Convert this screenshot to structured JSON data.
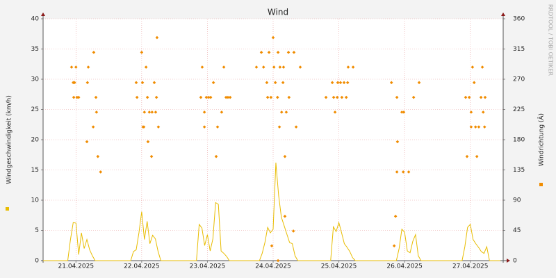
{
  "chart_data": {
    "type": "line",
    "title": "Wind",
    "ylabel": "Windgeschwindigkeit (km/h)",
    "y2label": "Windrichtung (Â)",
    "watermark": "RRDTOOL / TOBI OETIKER",
    "xlim": [
      0,
      168
    ],
    "xticks": [
      {
        "value": 12,
        "label": "21.04.2025"
      },
      {
        "value": 36,
        "label": "22.04.2025"
      },
      {
        "value": 60,
        "label": "23.04.2025"
      },
      {
        "value": 84,
        "label": "24.04.2025"
      },
      {
        "value": 108,
        "label": "25.04.2025"
      },
      {
        "value": 132,
        "label": "26.04.2025"
      },
      {
        "value": 156,
        "label": "27.04.2025"
      }
    ],
    "ylim": [
      0,
      40
    ],
    "yticks": [
      0,
      5,
      10,
      15,
      20,
      25,
      30,
      35,
      40
    ],
    "y2lim": [
      0,
      360
    ],
    "y2ticks": [
      0,
      45,
      90,
      135,
      180,
      225,
      270,
      315,
      360
    ],
    "grid": true,
    "series": [
      {
        "type": "line",
        "color": "#e8bc00",
        "x": [
          0,
          1,
          2,
          3,
          4,
          5,
          6,
          7,
          8,
          9,
          10,
          11,
          12,
          13,
          14,
          15,
          16,
          17,
          18,
          19,
          20,
          21,
          22,
          23,
          24,
          25,
          26,
          27,
          28,
          29,
          30,
          31,
          32,
          33,
          34,
          35,
          36,
          37,
          38,
          39,
          40,
          41,
          42,
          43,
          44,
          45,
          46,
          47,
          48,
          49,
          50,
          51,
          52,
          53,
          54,
          55,
          56,
          57,
          58,
          59,
          60,
          61,
          62,
          63,
          64,
          65,
          66,
          67,
          68,
          69,
          70,
          71,
          72,
          73,
          74,
          75,
          76,
          77,
          78,
          79,
          80,
          81,
          82,
          83,
          84,
          85,
          86,
          87,
          88,
          89,
          90,
          91,
          92,
          93,
          94,
          95,
          96,
          97,
          98,
          99,
          100,
          101,
          102,
          103,
          104,
          105,
          106,
          107,
          108,
          109,
          110,
          111,
          112,
          113,
          114,
          115,
          116,
          117,
          118,
          119,
          120,
          121,
          122,
          123,
          124,
          125,
          126,
          127,
          128,
          129,
          130,
          131,
          132,
          133,
          134,
          135,
          136,
          137,
          138,
          139,
          140,
          141,
          142,
          143,
          144,
          145,
          146,
          147,
          148,
          149,
          150,
          151,
          152,
          153,
          154,
          155,
          156,
          157,
          158,
          159,
          160,
          161,
          162,
          163,
          164,
          165,
          166,
          167
        ],
        "values": [
          0,
          0,
          0,
          0,
          0,
          0,
          0,
          0,
          0,
          0,
          3.5,
          6.3,
          6.2,
          1,
          4.6,
          2,
          3.5,
          1.8,
          0.8,
          0,
          0,
          0,
          0,
          0,
          0,
          0,
          0,
          0,
          0,
          0,
          0,
          0,
          0,
          1.5,
          1.8,
          4.6,
          8.1,
          3.5,
          6.5,
          2.8,
          4.2,
          3.6,
          1.5,
          0,
          0,
          0,
          0,
          0,
          0,
          0,
          0,
          0,
          0,
          0,
          0,
          0,
          0,
          6,
          5.4,
          2.5,
          4.3,
          1.6,
          3.6,
          9.6,
          9.3,
          1.6,
          1.2,
          0.7,
          0,
          0,
          0,
          0,
          0,
          0,
          0,
          0,
          0,
          0,
          0,
          0,
          1.2,
          3,
          5.5,
          4.6,
          5.2,
          16.2,
          10.8,
          7.2,
          5.8,
          4.4,
          3,
          2.8,
          0.8,
          0,
          0,
          0,
          0,
          0,
          0,
          0,
          0,
          0,
          0,
          0,
          0,
          0,
          5.6,
          4.8,
          6.3,
          4.6,
          2.8,
          2.2,
          1.5,
          0.5,
          0,
          0,
          0,
          0,
          0,
          0,
          0,
          0,
          0,
          0,
          0,
          0,
          0,
          0,
          0,
          0,
          2,
          5.2,
          4.7,
          1.6,
          1.3,
          3.2,
          4.3,
          0.8,
          0,
          0,
          0,
          0,
          0,
          0,
          0,
          0,
          0,
          0,
          0,
          0,
          0,
          0,
          0,
          0,
          2.3,
          5.5,
          6,
          3.5,
          2.8,
          2.2,
          1.5,
          1.2,
          2.3,
          0,
          0,
          0,
          0,
          0
        ]
      },
      {
        "type": "scatter",
        "axis": "y2",
        "color": "#f08c00",
        "x": [
          10.4,
          11,
          11.5,
          12,
          12.4,
          13,
          16,
          16.2,
          16.5,
          18.3,
          18.5,
          19.3,
          19.5,
          20,
          21,
          11.2,
          34,
          34.3,
          36,
          36.3,
          36.5,
          36.8,
          37,
          37.6,
          38.1,
          38.3,
          38.8,
          39.6,
          39.8,
          40.6,
          41.1,
          41.4,
          41.6,
          42.1,
          57.6,
          58.1,
          58.9,
          58.9,
          59.6,
          60.5,
          61.2,
          62.2,
          63.2,
          63.7,
          65.2,
          66,
          66.8,
          67.5,
          68.3,
          77.9,
          79.7,
          80.5,
          81.7,
          82,
          82.5,
          83.2,
          83.5,
          84,
          84.3,
          84.8,
          85.6,
          85.8,
          85.8,
          86.3,
          86.5,
          87.1,
          87.6,
          87.8,
          88.3,
          88.3,
          88.8,
          89.6,
          89.8,
          91.4,
          91.6,
          92.4,
          93.9,
          103.3,
          105.6,
          106.1,
          106.6,
          107.4,
          107.6,
          108.6,
          109.1,
          109.9,
          110.7,
          111.2,
          111.4,
          113.2,
          127.2,
          128.2,
          128.7,
          129.2,
          129.2,
          129.4,
          131,
          131.5,
          131.7,
          133.5,
          135.3,
          137.3,
          154.3,
          154.8,
          155.6,
          156.3,
          156.3,
          156.8,
          157.4,
          157.9,
          158.4,
          159.1,
          159.9,
          160.4,
          160.7,
          161.2,
          161.4
        ],
        "values": [
          288,
          265,
          265,
          288,
          243,
          243,
          177,
          265,
          288,
          199,
          310,
          243,
          221,
          155,
          132,
          243,
          265,
          243,
          310,
          265,
          199,
          199,
          221,
          288,
          243,
          177,
          221,
          155,
          221,
          265,
          221,
          243,
          332,
          199,
          243,
          288,
          221,
          199,
          243,
          243,
          243,
          265,
          155,
          199,
          221,
          288,
          243,
          243,
          243,
          288,
          310,
          288,
          265,
          243,
          310,
          243,
          22,
          332,
          288,
          265,
          243,
          310,
          0,
          199,
          288,
          221,
          265,
          288,
          155,
          66,
          221,
          310,
          243,
          44,
          310,
          199,
          288,
          243,
          265,
          243,
          221,
          243,
          265,
          265,
          243,
          265,
          243,
          265,
          288,
          288,
          265,
          22,
          66,
          243,
          132,
          177,
          221,
          132,
          221,
          132,
          243,
          265,
          243,
          155,
          243,
          221,
          199,
          288,
          265,
          199,
          155,
          199,
          243,
          288,
          221,
          199,
          243
        ]
      }
    ]
  }
}
